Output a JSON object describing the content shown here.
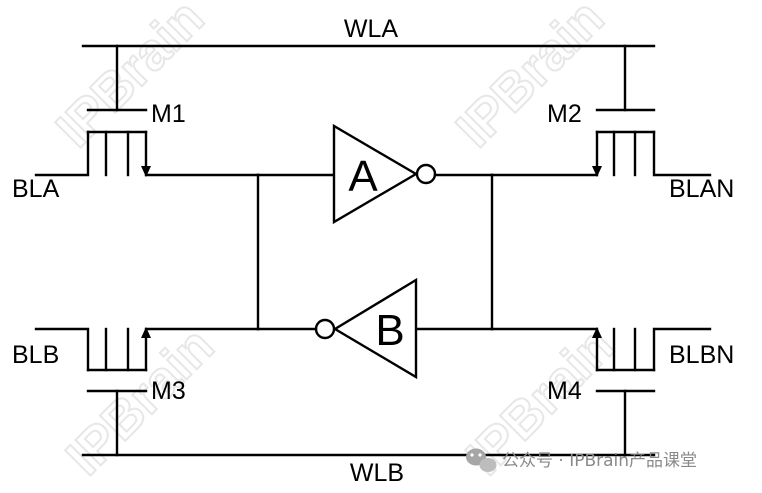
{
  "labels": {
    "wla": "WLA",
    "wlb": "WLB",
    "bla": "BLA",
    "blan": "BLAN",
    "blb": "BLB",
    "blbn": "BLBN",
    "m1": "M1",
    "m2": "M2",
    "m3": "M3",
    "m4": "M4",
    "gate_a": "A",
    "gate_b": "B"
  },
  "watermark": {
    "text": "IPBrain"
  },
  "footer": {
    "text": "公众号 · IPBrain产品课堂",
    "icon": "wechat-icon"
  }
}
